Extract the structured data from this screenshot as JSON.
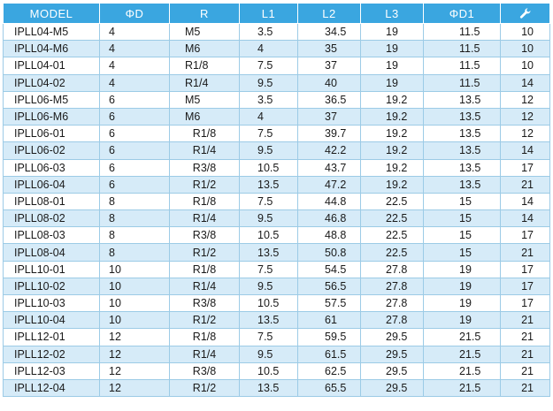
{
  "headers": {
    "model": "MODEL",
    "d": "ΦD",
    "r": "R",
    "l1": "L1",
    "l2": "L2",
    "l3": "L3",
    "d1": "ΦD1",
    "wrench_icon": "wrench-icon"
  },
  "colors": {
    "header_bg": "#3aa6e0",
    "stripe_bg": "#d6ebf8"
  },
  "rows": [
    [
      "IPLL04-M5",
      "4",
      "M5",
      "3.5",
      "34.5",
      "19",
      "11.5",
      "10"
    ],
    [
      "IPLL04-M6",
      "4",
      "M6",
      "4",
      "35",
      "19",
      "11.5",
      "10"
    ],
    [
      "IPLL04-01",
      "4",
      "R1/8",
      "7.5",
      "37",
      "19",
      "11.5",
      "10"
    ],
    [
      "IPLL04-02",
      "4",
      "R1/4",
      "9.5",
      "40",
      "19",
      "11.5",
      "14"
    ],
    [
      "IPLL06-M5",
      "6",
      "M5",
      "3.5",
      "36.5",
      "19.2",
      "13.5",
      "12"
    ],
    [
      "IPLL06-M6",
      "6",
      "M6",
      "4",
      "37",
      "19.2",
      "13.5",
      "12"
    ],
    [
      "IPLL06-01",
      "6",
      "R1/8",
      "7.5",
      "39.7",
      "19.2",
      "13.5",
      "12"
    ],
    [
      "IPLL06-02",
      "6",
      "R1/4",
      "9.5",
      "42.2",
      "19.2",
      "13.5",
      "14"
    ],
    [
      "IPLL06-03",
      "6",
      "R3/8",
      "10.5",
      "43.7",
      "19.2",
      "13.5",
      "17"
    ],
    [
      "IPLL06-04",
      "6",
      "R1/2",
      "13.5",
      "47.2",
      "19.2",
      "13.5",
      "21"
    ],
    [
      "IPLL08-01",
      "8",
      "R1/8",
      "7.5",
      "44.8",
      "22.5",
      "15",
      "14"
    ],
    [
      "IPLL08-02",
      "8",
      "R1/4",
      "9.5",
      "46.8",
      "22.5",
      "15",
      "14"
    ],
    [
      "IPLL08-03",
      "8",
      "R3/8",
      "10.5",
      "48.8",
      "22.5",
      "15",
      "17"
    ],
    [
      "IPLL08-04",
      "8",
      "R1/2",
      "13.5",
      "50.8",
      "22.5",
      "15",
      "21"
    ],
    [
      "IPLL10-01",
      "10",
      "R1/8",
      "7.5",
      "54.5",
      "27.8",
      "19",
      "17"
    ],
    [
      "IPLL10-02",
      "10",
      "R1/4",
      "9.5",
      "56.5",
      "27.8",
      "19",
      "17"
    ],
    [
      "IPLL10-03",
      "10",
      "R3/8",
      "10.5",
      "57.5",
      "27.8",
      "19",
      "17"
    ],
    [
      "IPLL10-04",
      "10",
      "R1/2",
      "13.5",
      "61",
      "27.8",
      "19",
      "21"
    ],
    [
      "IPLL12-01",
      "12",
      "R1/8",
      "7.5",
      "59.5",
      "29.5",
      "21.5",
      "21"
    ],
    [
      "IPLL12-02",
      "12",
      "R1/4",
      "9.5",
      "61.5",
      "29.5",
      "21.5",
      "21"
    ],
    [
      "IPLL12-03",
      "12",
      "R3/8",
      "10.5",
      "62.5",
      "29.5",
      "21.5",
      "21"
    ],
    [
      "IPLL12-04",
      "12",
      "R1/2",
      "13.5",
      "65.5",
      "29.5",
      "21.5",
      "21"
    ]
  ]
}
